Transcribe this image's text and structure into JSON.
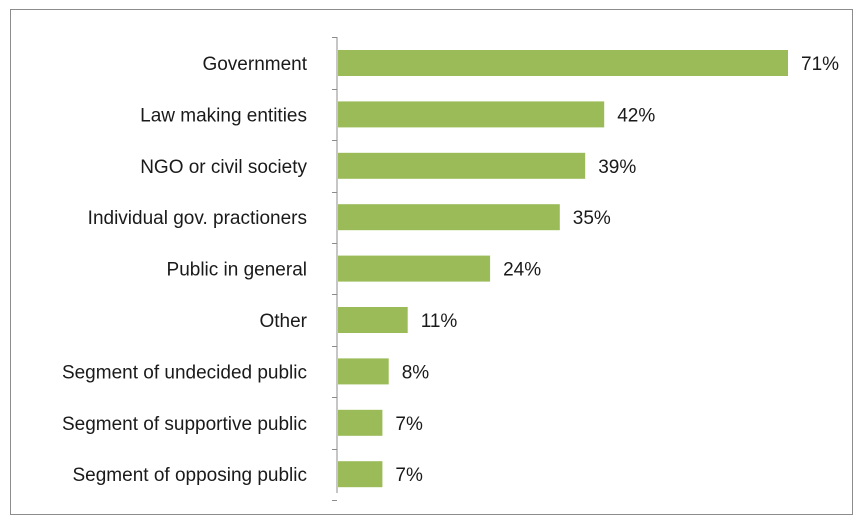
{
  "chart_data": {
    "type": "bar",
    "orientation": "horizontal",
    "categories": [
      "Government",
      "Law making entities",
      "NGO or civil society",
      "Individual gov. practioners",
      "Public in general",
      "Other",
      "Segment of undecided public",
      "Segment of supportive public",
      "Segment of opposing public"
    ],
    "values": [
      71,
      42,
      39,
      35,
      24,
      11,
      8,
      7,
      7
    ],
    "value_labels": [
      "71%",
      "42%",
      "39%",
      "35%",
      "24%",
      "11%",
      "8%",
      "7%",
      "7%"
    ],
    "unit": "%",
    "xlim": [
      0,
      71
    ],
    "title": "",
    "xlabel": "",
    "ylabel": "",
    "grid": false,
    "legend": "none",
    "bar_color": "#9bbb59",
    "axis_color": "#8c8c8c"
  }
}
